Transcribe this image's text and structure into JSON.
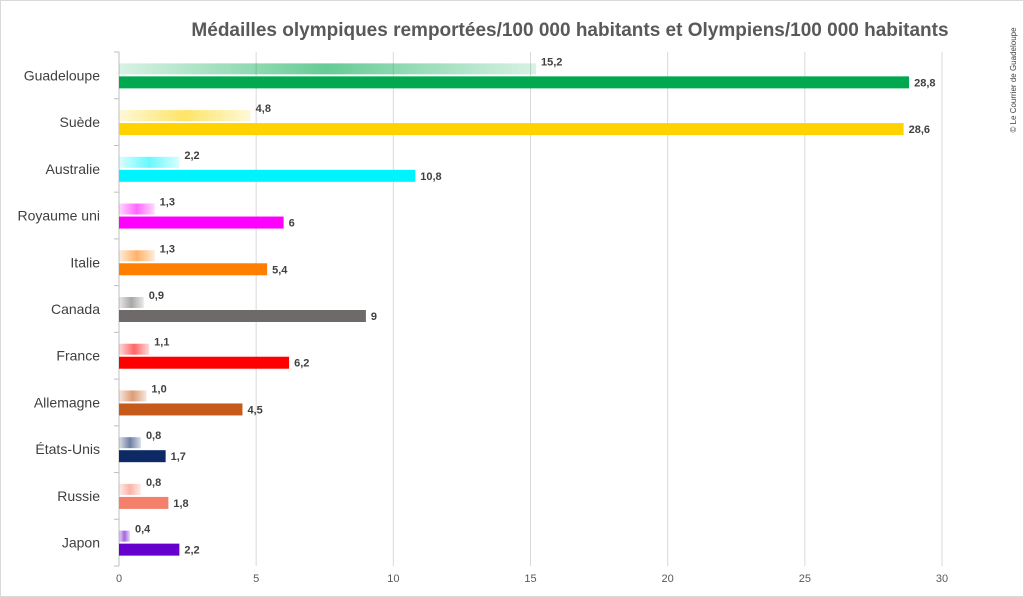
{
  "chart_data": {
    "type": "bar",
    "orientation": "horizontal",
    "title": "Médailles olympiques remportées/100 000 habitants  et  Olympiens/100 000 habitants",
    "credit": "© Le Courrier de Guadeloupe",
    "xlim": [
      0,
      30
    ],
    "xticks": [
      "0",
      "5",
      "10",
      "15",
      "20",
      "25",
      "30"
    ],
    "xtick_values": [
      0,
      5,
      10,
      15,
      20,
      25,
      30
    ],
    "grid": true,
    "categories": [
      "Guadeloupe",
      "Suède",
      "Australie",
      "Royaume uni",
      "Italie",
      "Canada",
      "France",
      "Allemagne",
      "États-Unis",
      "Russie",
      "Japon"
    ],
    "colors": [
      "#00a84f",
      "#ffd200",
      "#00f4ff",
      "#ff00ff",
      "#ff7f00",
      "#6f6a6a",
      "#ff0000",
      "#c55a1a",
      "#0d2a66",
      "#f4806c",
      "#6600cc"
    ],
    "series": [
      {
        "key": "medailles",
        "style": "faded",
        "values": [
          15.2,
          4.8,
          2.2,
          1.3,
          1.3,
          0.9,
          1.1,
          1.0,
          0.8,
          0.8,
          0.4
        ],
        "labels": [
          "15,2",
          "4,8",
          "2,2",
          "1,3",
          "1,3",
          "0,9",
          "1,1",
          "1,0",
          "0,8",
          "0,8",
          "0,4"
        ]
      },
      {
        "key": "olympiens",
        "style": "solid",
        "values": [
          28.8,
          28.6,
          10.8,
          6,
          5.4,
          9,
          6.2,
          4.5,
          1.7,
          1.8,
          2.2
        ],
        "labels": [
          "28,8",
          "28,6",
          "10,8",
          "6",
          "5,4",
          "9",
          "6,2",
          "4,5",
          "1,7",
          "1,8",
          "2,2"
        ]
      }
    ]
  }
}
